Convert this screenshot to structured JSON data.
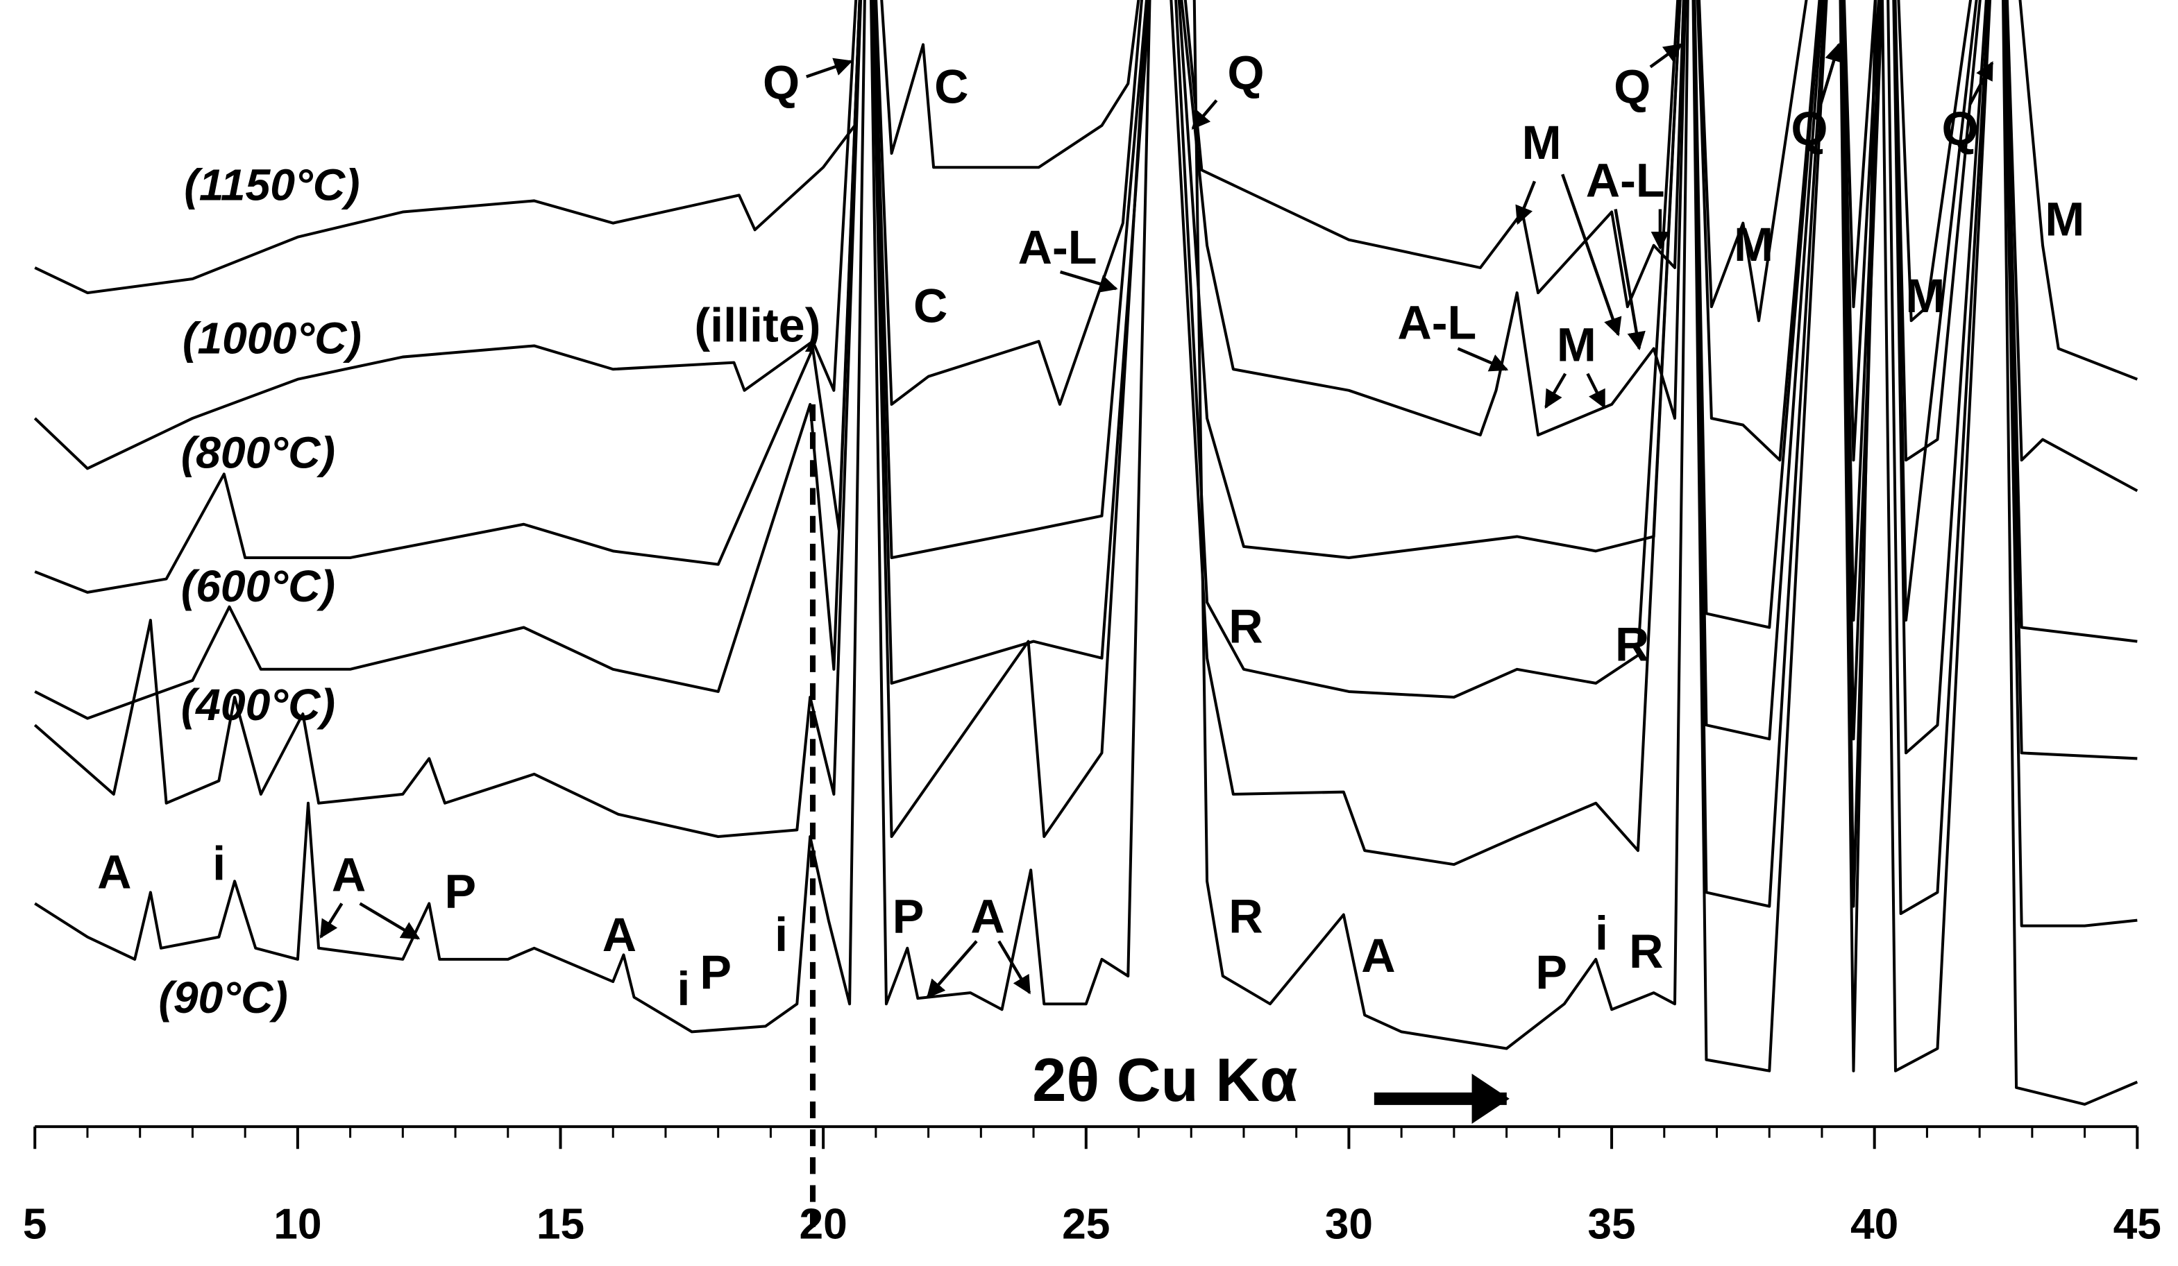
{
  "chart_data": {
    "type": "line",
    "x_label": "2θ Cu Kα",
    "xlim": [
      5,
      45
    ],
    "xticks": [
      5,
      10,
      15,
      20,
      25,
      30,
      35,
      40,
      45
    ],
    "minor_xticks": [
      6,
      7,
      8,
      9,
      11,
      12,
      13,
      14,
      16,
      17,
      18,
      19,
      21,
      22,
      23,
      24,
      26,
      27,
      28,
      29,
      31,
      32,
      33,
      34,
      36,
      37,
      38,
      39,
      41,
      42,
      43,
      44
    ],
    "ylim": [
      0,
      100
    ],
    "dashed_line_x": 19.8,
    "series": [
      {
        "name": "(90°C)",
        "color": "#000000",
        "x": [
          5,
          6,
          6.9,
          7.2,
          7.4,
          8.5,
          8.8,
          9.2,
          10,
          10.2,
          10.4,
          12,
          12.5,
          12.7,
          14,
          14.5,
          16,
          16.2,
          16.4,
          17.5,
          18.9,
          19.5,
          19.75,
          20.1,
          20.5,
          20.85,
          21.2,
          21.6,
          21.8,
          22.8,
          23.4,
          23.95,
          24.2,
          25,
          25.3,
          25.8,
          26.3,
          27,
          27.3,
          27.6,
          28.5,
          29.9,
          30.3,
          31,
          33,
          34.1,
          34.7,
          35,
          35.8,
          36.2,
          36.5,
          36.8,
          38,
          39.3,
          39.6,
          40.1,
          40.4,
          41.2,
          42.4,
          42.7,
          44,
          45
        ],
        "values": [
          20,
          17,
          15,
          21,
          16,
          17,
          22,
          16,
          15,
          29,
          16,
          15,
          20,
          15,
          15,
          16,
          13,
          15.4,
          11.6,
          8.5,
          9,
          11,
          26,
          18.5,
          11,
          120,
          11,
          16,
          11.5,
          12,
          10.5,
          23,
          11,
          11,
          15,
          13.5,
          120,
          120,
          22,
          13.5,
          11,
          19,
          10,
          8.5,
          7,
          11,
          15,
          10.5,
          12,
          11,
          120,
          6,
          5,
          120,
          5,
          120,
          5,
          7,
          120,
          3.5,
          2,
          4
        ]
      },
      {
        "name": "(400°C)",
        "color": "#000000",
        "x": [
          5,
          6.5,
          7.2,
          7.5,
          8.5,
          8.8,
          9.3,
          10.1,
          10.4,
          12,
          12.5,
          12.8,
          14.5,
          16.1,
          18,
          19.5,
          19.75,
          20.2,
          20.85,
          21.3,
          23.9,
          24.2,
          25.3,
          26.4,
          27.3,
          27.8,
          29.9,
          30.3,
          32,
          33.2,
          34.7,
          35.5,
          36.5,
          36.8,
          38,
          39.3,
          39.6,
          40.2,
          40.5,
          41.2,
          42.4,
          42.8,
          44,
          45
        ],
        "values": [
          36,
          29.8,
          45.4,
          29,
          31,
          38.5,
          29.8,
          37,
          29,
          29.8,
          33,
          29,
          31.6,
          28,
          26,
          26.6,
          38.5,
          29.8,
          120,
          26,
          43.5,
          26,
          33.5,
          120,
          42,
          29.8,
          30,
          24.75,
          23.5,
          26,
          29,
          24.75,
          120,
          21,
          19.75,
          120,
          19.75,
          120,
          19.1,
          21,
          120,
          18,
          18,
          18.5
        ]
      },
      {
        "name": "(600°C)",
        "color": "#000000",
        "x": [
          5,
          6,
          8,
          8.7,
          9.3,
          11,
          14.3,
          16,
          18,
          19.75,
          20.2,
          20.85,
          21.3,
          24,
          25.3,
          26.5,
          27.3,
          28,
          30,
          32,
          33.2,
          34.7,
          35.5,
          36.5,
          36.8,
          38,
          39.3,
          39.6,
          40.3,
          40.6,
          41.2,
          42.4,
          42.8,
          45
        ],
        "values": [
          39,
          36.6,
          40,
          46.6,
          41,
          41,
          44.75,
          41,
          39,
          64.75,
          41,
          120,
          39.75,
          43.5,
          42,
          120,
          47,
          41,
          39,
          38.5,
          41,
          39.75,
          42.25,
          120,
          36,
          34.75,
          120,
          34.75,
          120,
          33.5,
          36,
          120,
          33.5,
          33
        ]
      },
      {
        "name": "(800°C)",
        "color": "#000000",
        "x": [
          5,
          6,
          7.5,
          8.6,
          9,
          11,
          14.3,
          16,
          18,
          19.8,
          20.3,
          20.85,
          21.3,
          24,
          25.3,
          26.5,
          27.3,
          28,
          30,
          33.2,
          34.7,
          35.8,
          36.5,
          36.8,
          38,
          39.3,
          39.6,
          40.3,
          40.6,
          42.4,
          42.8,
          45
        ],
        "values": [
          49.75,
          47.9,
          49.1,
          58.5,
          51,
          51,
          54,
          51.6,
          50.4,
          69.75,
          53.5,
          120,
          51,
          53.5,
          54.75,
          120,
          63.5,
          52,
          51,
          52.9,
          51.6,
          52.9,
          120,
          46,
          44.75,
          120,
          45.4,
          120,
          45.4,
          120,
          44.75,
          43.5
        ]
      },
      {
        "name": "(1000°C)",
        "color": "#000000",
        "x": [
          5,
          6,
          8,
          10,
          12,
          14.5,
          16,
          18.3,
          18.5,
          19.8,
          20.2,
          20.85,
          21.3,
          22,
          24.1,
          24.5,
          25.7,
          26.4,
          27.3,
          27.8,
          30,
          32.5,
          32.8,
          33.2,
          33.6,
          35,
          35.8,
          36.2,
          36.5,
          36.9,
          37.5,
          38.2,
          39.3,
          39.6,
          40.3,
          40.6,
          41.2,
          42.4,
          42.8,
          43.2,
          45
        ],
        "values": [
          63.5,
          59,
          63.5,
          67,
          69,
          70,
          67.9,
          68.5,
          66,
          70.4,
          66,
          120,
          64.75,
          67.25,
          70.4,
          64.75,
          81,
          120,
          79,
          67.9,
          66,
          62,
          66,
          74.75,
          62,
          64.75,
          69.75,
          63.5,
          120,
          63.5,
          62.9,
          59.75,
          120,
          59.75,
          120,
          59.75,
          61.6,
          120,
          59.75,
          61.6,
          57
        ]
      },
      {
        "name": "(1150°C)",
        "color": "#000000",
        "x": [
          5,
          6,
          8,
          10,
          12,
          14.5,
          16,
          18.4,
          18.7,
          20,
          20.6,
          20.85,
          21.3,
          21.9,
          22.1,
          24.1,
          25.3,
          25.8,
          26.5,
          27.2,
          30,
          32.5,
          33.3,
          33.6,
          35,
          35.3,
          35.8,
          36.2,
          36.5,
          36.9,
          37.5,
          37.8,
          39.3,
          39.6,
          40.3,
          40.7,
          41,
          42.4,
          43.2,
          43.5,
          45
        ],
        "values": [
          77,
          74.75,
          76,
          79.75,
          82,
          83,
          81,
          83.5,
          80.4,
          86,
          89.75,
          120,
          87.25,
          97,
          86,
          86,
          89.75,
          93.5,
          120,
          85.75,
          79.5,
          77,
          82,
          74.75,
          82,
          73.5,
          79,
          77,
          120,
          73.5,
          81,
          72.25,
          120,
          73.5,
          120,
          72.25,
          73.5,
          120,
          79,
          69.75,
          67
        ]
      }
    ],
    "annotations": [
      "Q",
      "C",
      "Q",
      "Q",
      "Q",
      "Q",
      "M",
      "A-L",
      "M",
      "M",
      "A-L",
      "C",
      "(illite)",
      "A-L",
      "M",
      "M",
      "R",
      "R",
      "A",
      "i",
      "A",
      "P",
      "A",
      "i",
      "P",
      "i",
      "P",
      "A",
      "R",
      "A",
      "P",
      "i",
      "R"
    ]
  }
}
